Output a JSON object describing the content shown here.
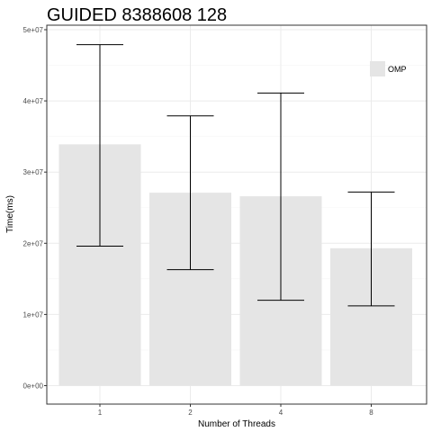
{
  "chart_data": {
    "type": "bar",
    "title": "GUIDED 8388608 128",
    "xlabel": "Number of Threads",
    "ylabel": "Time(ms)",
    "categories": [
      "1",
      "2",
      "4",
      "8"
    ],
    "series": [
      {
        "name": "OMP",
        "values": [
          33900000,
          27100000,
          26600000,
          19300000
        ],
        "error_low": [
          19600000,
          16300000,
          12000000,
          11200000
        ],
        "error_high": [
          47900000,
          37900000,
          41100000,
          27200000
        ]
      }
    ],
    "ylim": [
      0,
      50000000
    ],
    "yticks": [
      0,
      10000000,
      20000000,
      30000000,
      40000000,
      50000000
    ],
    "ytick_labels": [
      "0e+00",
      "1e+07",
      "2e+07",
      "3e+07",
      "4e+07",
      "5e+07"
    ],
    "grid": true,
    "legend": "top-right",
    "colors": {
      "bar_fill": "#e5e5e5",
      "error_bar": "#000000",
      "grid_major": "#ebebeb",
      "grid_minor": "#f5f5f5",
      "panel_border": "#333333"
    }
  }
}
